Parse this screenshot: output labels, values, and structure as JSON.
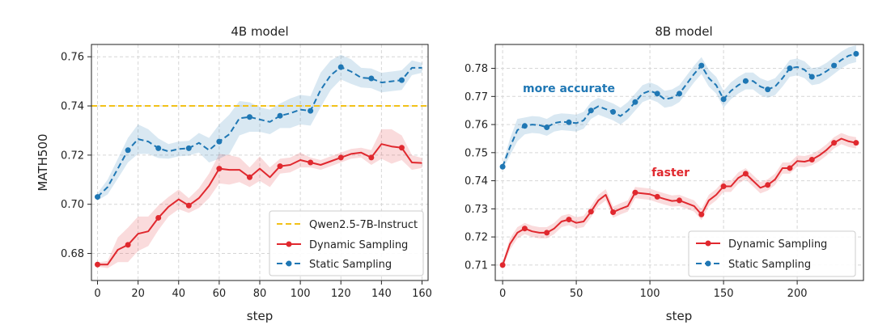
{
  "chart_data": [
    {
      "type": "line",
      "title": "4B model",
      "xlabel": "step",
      "ylabel": "MATH500",
      "xlim": [
        -3,
        163
      ],
      "ylim": [
        0.669,
        0.765
      ],
      "xticks": [
        0,
        20,
        40,
        60,
        80,
        100,
        120,
        140,
        160
      ],
      "xtick_labels": [
        "0",
        "20",
        "40",
        "60",
        "80",
        "100",
        "120",
        "140",
        "160"
      ],
      "yticks": [
        0.68,
        0.7,
        0.72,
        0.74,
        0.76
      ],
      "ytick_labels": [
        "0.68",
        "0.70",
        "0.72",
        "0.74",
        "0.76"
      ],
      "grid": true,
      "legend_position": "lower-right",
      "hline": {
        "name": "Qwen2.5-7B-Instruct",
        "y": 0.74,
        "color": "#f2c118",
        "style": "dashed"
      },
      "series": [
        {
          "name": "Dynamic Sampling",
          "color": "#e0282e",
          "style": "solid",
          "x": [
            0,
            5,
            10,
            15,
            20,
            25,
            30,
            35,
            40,
            45,
            50,
            55,
            60,
            65,
            70,
            75,
            80,
            85,
            90,
            95,
            100,
            105,
            110,
            115,
            120,
            125,
            130,
            135,
            140,
            145,
            150,
            155,
            160
          ],
          "y": [
            0.6755,
            0.6755,
            0.6815,
            0.6835,
            0.688,
            0.689,
            0.6945,
            0.699,
            0.702,
            0.6995,
            0.7025,
            0.7075,
            0.7145,
            0.714,
            0.714,
            0.711,
            0.7145,
            0.711,
            0.7155,
            0.716,
            0.718,
            0.717,
            0.716,
            0.7175,
            0.719,
            0.7205,
            0.721,
            0.719,
            0.7245,
            0.7235,
            0.723,
            0.717,
            0.7168
          ],
          "band": [
            0.0008,
            0.0015,
            0.005,
            0.007,
            0.007,
            0.006,
            0.005,
            0.004,
            0.004,
            0.003,
            0.004,
            0.005,
            0.006,
            0.006,
            0.005,
            0.004,
            0.005,
            0.004,
            0.003,
            0.003,
            0.003,
            0.002,
            0.002,
            0.002,
            0.002,
            0.002,
            0.002,
            0.003,
            0.006,
            0.007,
            0.005,
            0.003,
            0.002
          ],
          "marker_x": [
            0,
            15,
            30,
            45,
            60,
            75,
            90,
            105,
            120,
            135,
            150
          ],
          "marker_y": [
            0.6755,
            0.6835,
            0.6945,
            0.6995,
            0.7145,
            0.711,
            0.7155,
            0.717,
            0.719,
            0.719,
            0.723
          ]
        },
        {
          "name": "Static Sampling",
          "color": "#1f77b4",
          "style": "dashed",
          "x": [
            0,
            5,
            10,
            15,
            20,
            25,
            30,
            35,
            40,
            45,
            50,
            55,
            60,
            65,
            70,
            75,
            80,
            85,
            90,
            95,
            100,
            105,
            110,
            115,
            120,
            125,
            130,
            135,
            140,
            145,
            150,
            155,
            160
          ],
          "y": [
            0.703,
            0.707,
            0.7145,
            0.722,
            0.7265,
            0.7255,
            0.7228,
            0.7215,
            0.7225,
            0.7228,
            0.725,
            0.722,
            0.7255,
            0.7285,
            0.735,
            0.7355,
            0.7345,
            0.7335,
            0.736,
            0.737,
            0.7385,
            0.738,
            0.7465,
            0.7525,
            0.7558,
            0.754,
            0.7515,
            0.7512,
            0.7495,
            0.75,
            0.7505,
            0.7555,
            0.7555
          ],
          "band": [
            0.0015,
            0.003,
            0.004,
            0.005,
            0.006,
            0.005,
            0.004,
            0.003,
            0.003,
            0.003,
            0.004,
            0.005,
            0.007,
            0.008,
            0.007,
            0.006,
            0.005,
            0.005,
            0.005,
            0.006,
            0.006,
            0.006,
            0.007,
            0.006,
            0.005,
            0.005,
            0.004,
            0.004,
            0.004,
            0.004,
            0.004,
            0.003,
            0.002
          ],
          "marker_x": [
            0,
            15,
            30,
            45,
            60,
            75,
            90,
            105,
            120,
            135,
            150
          ],
          "marker_y": [
            0.703,
            0.722,
            0.7228,
            0.7228,
            0.7255,
            0.7355,
            0.736,
            0.738,
            0.7558,
            0.7512,
            0.7505
          ]
        }
      ]
    },
    {
      "type": "line",
      "title": "8B model",
      "xlabel": "step",
      "ylabel": "",
      "xlim": [
        -5,
        245
      ],
      "ylim": [
        0.7045,
        0.7885
      ],
      "xticks": [
        0,
        50,
        100,
        150,
        200
      ],
      "xtick_labels": [
        "0",
        "50",
        "100",
        "150",
        "200"
      ],
      "yticks": [
        0.71,
        0.72,
        0.73,
        0.74,
        0.75,
        0.76,
        0.77,
        0.78
      ],
      "ytick_labels": [
        "0.71",
        "0.72",
        "0.73",
        "0.74",
        "0.75",
        "0.76",
        "0.77",
        "0.78"
      ],
      "grid": true,
      "legend_position": "lower-right",
      "annotations": [
        {
          "text": "more accurate",
          "x": 45,
          "y": 0.7715,
          "color": "#1f77b4"
        },
        {
          "text": "faster",
          "x": 114,
          "y": 0.7416,
          "color": "#e0282e"
        }
      ],
      "series": [
        {
          "name": "Dynamic Sampling",
          "color": "#e0282e",
          "style": "solid",
          "x": [
            0,
            5,
            10,
            15,
            20,
            25,
            30,
            35,
            40,
            45,
            50,
            55,
            60,
            65,
            70,
            75,
            80,
            85,
            90,
            95,
            100,
            105,
            110,
            115,
            120,
            125,
            130,
            135,
            140,
            145,
            150,
            155,
            160,
            165,
            170,
            175,
            180,
            185,
            190,
            195,
            200,
            205,
            210,
            215,
            220,
            225,
            230,
            235,
            240
          ],
          "y": [
            0.71,
            0.7175,
            0.7215,
            0.723,
            0.722,
            0.7215,
            0.7215,
            0.723,
            0.7255,
            0.7262,
            0.725,
            0.7255,
            0.729,
            0.733,
            0.735,
            0.7288,
            0.73,
            0.731,
            0.7358,
            0.7355,
            0.7352,
            0.7343,
            0.7335,
            0.7328,
            0.733,
            0.732,
            0.731,
            0.728,
            0.733,
            0.735,
            0.738,
            0.738,
            0.741,
            0.7425,
            0.74,
            0.7375,
            0.7385,
            0.7405,
            0.7445,
            0.7445,
            0.747,
            0.7468,
            0.7475,
            0.749,
            0.751,
            0.7535,
            0.755,
            0.754,
            0.7535
          ],
          "band": [
            0.001,
            0.002,
            0.002,
            0.002,
            0.002,
            0.002,
            0.002,
            0.002,
            0.002,
            0.002,
            0.002,
            0.002,
            0.002,
            0.002,
            0.002,
            0.002,
            0.002,
            0.002,
            0.002,
            0.002,
            0.002,
            0.002,
            0.002,
            0.002,
            0.002,
            0.002,
            0.002,
            0.002,
            0.002,
            0.002,
            0.002,
            0.002,
            0.002,
            0.002,
            0.002,
            0.002,
            0.002,
            0.002,
            0.002,
            0.002,
            0.002,
            0.002,
            0.002,
            0.002,
            0.002,
            0.002,
            0.002,
            0.002,
            0.002
          ],
          "marker_x": [
            0,
            15,
            30,
            45,
            60,
            75,
            90,
            105,
            120,
            135,
            150,
            165,
            180,
            195,
            210,
            225,
            240
          ],
          "marker_y": [
            0.71,
            0.723,
            0.7215,
            0.7262,
            0.729,
            0.7288,
            0.7358,
            0.7343,
            0.733,
            0.728,
            0.738,
            0.7425,
            0.7385,
            0.7445,
            0.7475,
            0.7535,
            0.7535
          ]
        },
        {
          "name": "Static Sampling",
          "color": "#1f77b4",
          "style": "dashed",
          "x": [
            0,
            5,
            10,
            15,
            20,
            25,
            30,
            35,
            40,
            45,
            50,
            55,
            60,
            65,
            70,
            75,
            80,
            85,
            90,
            95,
            100,
            105,
            110,
            115,
            120,
            125,
            130,
            135,
            140,
            145,
            150,
            155,
            160,
            165,
            170,
            175,
            180,
            185,
            190,
            195,
            200,
            205,
            210,
            215,
            220,
            225,
            230,
            235,
            240
          ],
          "y": [
            0.745,
            0.752,
            0.758,
            0.7595,
            0.76,
            0.7598,
            0.759,
            0.7605,
            0.761,
            0.7608,
            0.7605,
            0.7615,
            0.765,
            0.7665,
            0.7655,
            0.7645,
            0.763,
            0.765,
            0.768,
            0.771,
            0.772,
            0.771,
            0.769,
            0.7695,
            0.771,
            0.7745,
            0.778,
            0.781,
            0.7765,
            0.774,
            0.769,
            0.772,
            0.774,
            0.7755,
            0.7755,
            0.7735,
            0.7725,
            0.7735,
            0.7765,
            0.78,
            0.7805,
            0.7795,
            0.777,
            0.7775,
            0.779,
            0.781,
            0.783,
            0.7845,
            0.7852
          ],
          "band": [
            0.001,
            0.003,
            0.004,
            0.003,
            0.003,
            0.003,
            0.003,
            0.003,
            0.003,
            0.003,
            0.003,
            0.003,
            0.003,
            0.003,
            0.003,
            0.003,
            0.003,
            0.003,
            0.003,
            0.003,
            0.003,
            0.003,
            0.003,
            0.003,
            0.003,
            0.003,
            0.003,
            0.003,
            0.003,
            0.003,
            0.003,
            0.003,
            0.003,
            0.003,
            0.003,
            0.003,
            0.003,
            0.003,
            0.003,
            0.003,
            0.003,
            0.003,
            0.003,
            0.003,
            0.003,
            0.003,
            0.003,
            0.003,
            0.003
          ],
          "marker_x": [
            0,
            15,
            30,
            45,
            60,
            75,
            90,
            105,
            120,
            135,
            150,
            165,
            180,
            195,
            210,
            225,
            240
          ],
          "marker_y": [
            0.745,
            0.7595,
            0.759,
            0.7608,
            0.765,
            0.7645,
            0.768,
            0.771,
            0.771,
            0.781,
            0.769,
            0.7755,
            0.7725,
            0.78,
            0.777,
            0.781,
            0.7852
          ]
        }
      ]
    }
  ]
}
